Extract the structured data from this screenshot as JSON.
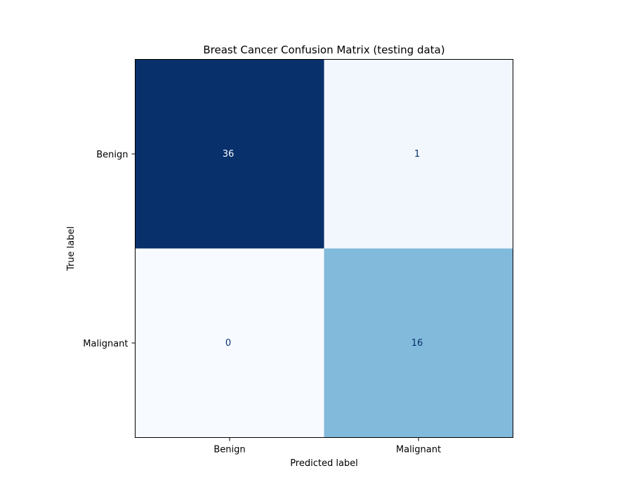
{
  "chart_data": {
    "type": "heatmap",
    "title": "Breast Cancer Confusion Matrix (testing data)",
    "xlabel": "Predicted label",
    "ylabel": "True label",
    "x_categories": [
      "Benign",
      "Malignant"
    ],
    "y_categories": [
      "Benign",
      "Malignant"
    ],
    "values": [
      [
        36,
        1
      ],
      [
        0,
        16
      ]
    ],
    "colormap": "Blues",
    "colorbar": false,
    "grid": false
  }
}
